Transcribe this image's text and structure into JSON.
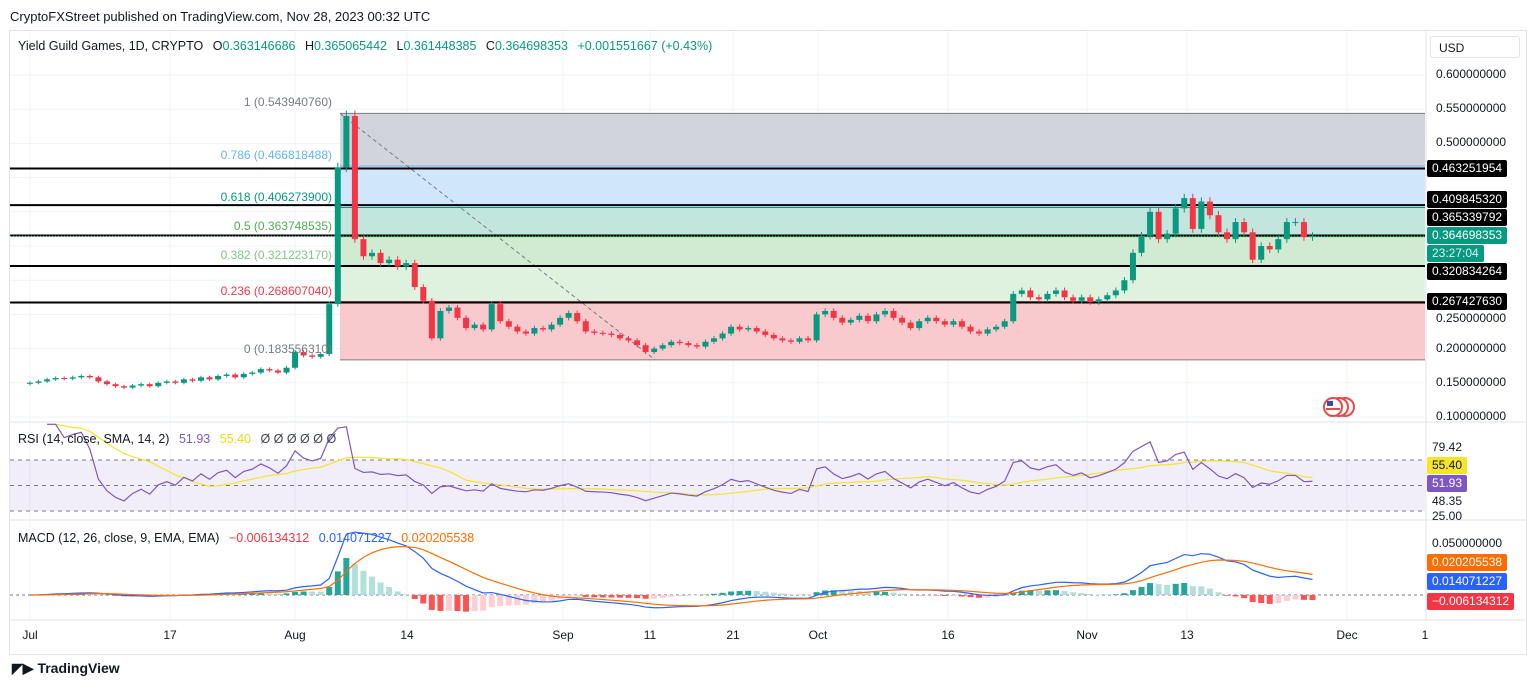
{
  "publisher": "CryptoFXStreet published on TradingView.com, Nov 28, 2023 00:32 UTC",
  "legend": {
    "symbol": "Yield Guild Games, 1D, CRYPTO",
    "o_label": "O",
    "o": "0.363146686",
    "h_label": "H",
    "h": "0.365065442",
    "l_label": "L",
    "l": "0.361448385",
    "c_label": "C",
    "c": "0.364698353",
    "change": "+0.001551667 (+0.43%)"
  },
  "currency": "USD",
  "countdown": "23:27:04",
  "colors": {
    "up": "#089981",
    "down": "#f23645",
    "rsi": "#7e57c2",
    "rsi_sma": "#f5e42a",
    "macd": "#2962ff",
    "signal": "#ff6d00"
  },
  "price_axis": [
    "0.600000000",
    "0.550000000",
    "0.500000000",
    "0.250000000",
    "0.200000000",
    "0.150000000",
    "0.100000000"
  ],
  "price_tags": [
    {
      "value": "0.463251954",
      "price": 0.463251954
    },
    {
      "value": "0.409845320",
      "price": 0.40984532
    },
    {
      "value": "0.365339792",
      "price": 0.365339792
    },
    {
      "value": "0.320834264",
      "price": 0.320834264
    },
    {
      "value": "0.267427630",
      "price": 0.26742763
    }
  ],
  "last_price": {
    "value": "0.364698353",
    "price": 0.364698353
  },
  "fib": [
    {
      "label": "1 (0.543940760)",
      "price": 0.54394076,
      "color": "#787b86",
      "zone": "#d1d4dc"
    },
    {
      "label": "0.786 (0.466818488)",
      "price": 0.466818488,
      "color": "#64b5f6",
      "zone": "#cfe6fb"
    },
    {
      "label": "0.618 (0.406273900)",
      "price": 0.4062739,
      "color": "#089981",
      "zone": "#c2e6dd"
    },
    {
      "label": "0.5 (0.363748535)",
      "price": 0.363748535,
      "color": "#4caf50",
      "zone": "#d0ebd1"
    },
    {
      "label": "0.382 (0.321223170)",
      "price": 0.32122317,
      "color": "#81c784",
      "zone": "#dff1df"
    },
    {
      "label": "0.236 (0.268607040)",
      "price": 0.26860704,
      "color": "#f23645",
      "zone": "#f8c9cd"
    },
    {
      "label": "0 (0.183556310)",
      "price": 0.18355631,
      "color": "#787b86",
      "zone": ""
    }
  ],
  "rsi": {
    "title": "RSI (14, close, SMA, 14, 2)",
    "value": "51.93",
    "sma": "55.40",
    "extra": "Ø Ø Ø Ø Ø Ø",
    "axis": [
      "79.42",
      "48.35",
      "25.00"
    ],
    "levels": [
      70,
      50,
      30
    ]
  },
  "macd": {
    "title": "MACD (12, 26, close, 9, EMA, EMA)",
    "hist": "−0.006134312",
    "macd": "0.014071227",
    "signal": "0.020205538",
    "axis": [
      "0.050000000"
    ]
  },
  "time_axis": [
    "Jul",
    "17",
    "Aug",
    "14",
    "Sep",
    "11",
    "21",
    "Oct",
    "16",
    "Nov",
    "13",
    "Dec",
    "1"
  ],
  "brand": "TradingView",
  "chart_data": {
    "type": "candlestick",
    "title": "Yield Guild Games, 1D, CRYPTO",
    "x_start": "2023-07-01",
    "x_end": "2023-11-28",
    "interval": "1D",
    "ylim": [
      0.1,
      0.62
    ],
    "grid": true,
    "close": [
      0.15,
      0.152,
      0.155,
      0.157,
      0.156,
      0.158,
      0.16,
      0.158,
      0.152,
      0.148,
      0.145,
      0.143,
      0.146,
      0.148,
      0.145,
      0.15,
      0.152,
      0.15,
      0.155,
      0.153,
      0.158,
      0.155,
      0.16,
      0.162,
      0.158,
      0.163,
      0.165,
      0.17,
      0.168,
      0.165,
      0.172,
      0.195,
      0.19,
      0.188,
      0.192,
      0.265,
      0.465,
      0.54,
      0.36,
      0.335,
      0.34,
      0.325,
      0.33,
      0.32,
      0.325,
      0.29,
      0.27,
      0.215,
      0.255,
      0.26,
      0.245,
      0.23,
      0.235,
      0.228,
      0.265,
      0.24,
      0.232,
      0.225,
      0.222,
      0.23,
      0.228,
      0.235,
      0.245,
      0.252,
      0.24,
      0.225,
      0.223,
      0.222,
      0.22,
      0.215,
      0.212,
      0.205,
      0.195,
      0.2,
      0.205,
      0.21,
      0.208,
      0.205,
      0.203,
      0.21,
      0.215,
      0.222,
      0.232,
      0.228,
      0.23,
      0.225,
      0.22,
      0.215,
      0.212,
      0.21,
      0.215,
      0.212,
      0.25,
      0.255,
      0.245,
      0.238,
      0.242,
      0.248,
      0.24,
      0.25,
      0.255,
      0.245,
      0.238,
      0.23,
      0.24,
      0.245,
      0.24,
      0.235,
      0.24,
      0.232,
      0.225,
      0.222,
      0.228,
      0.232,
      0.24,
      0.28,
      0.285,
      0.275,
      0.272,
      0.28,
      0.285,
      0.275,
      0.27,
      0.275,
      0.268,
      0.272,
      0.278,
      0.285,
      0.3,
      0.34,
      0.365,
      0.4,
      0.36,
      0.368,
      0.405,
      0.42,
      0.375,
      0.415,
      0.395,
      0.37,
      0.36,
      0.385,
      0.37,
      0.33,
      0.35,
      0.345,
      0.36,
      0.385,
      0.385,
      0.363,
      0.3647
    ]
  }
}
